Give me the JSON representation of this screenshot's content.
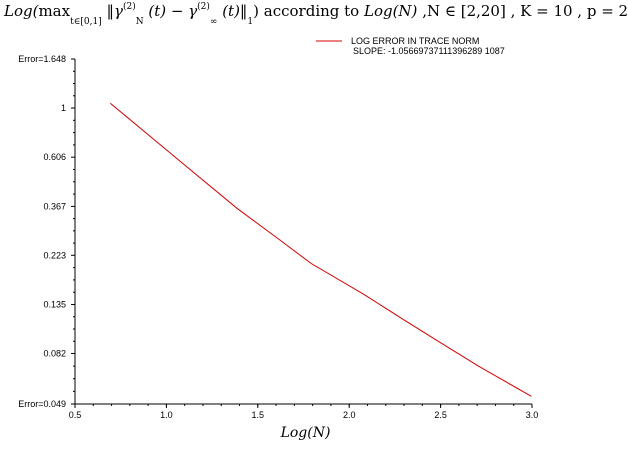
{
  "title": {
    "func": "Log(",
    "max": "max",
    "max_sub": "t∈[0,1]",
    "norm_open": "‖",
    "gamma_n": "γ",
    "gamma_n_sup": "(2)",
    "gamma_n_sub": "N",
    "minus": " (t) − ",
    "gamma_inf": "γ",
    "gamma_inf_sup": "(2)",
    "gamma_inf_sub": "∞",
    "after": " (t)",
    "norm_close": "‖",
    "norm_sub": "1",
    "rest_a": ") according to ",
    "rest_b": "Log(N)",
    "rest_c": " ,N ∈ [2,20] , K = 10 , p = 2"
  },
  "chart_data": {
    "type": "line",
    "xlabel": "Log(N)",
    "xlim": [
      0.5,
      3.0
    ],
    "x_ticks": [
      "0.5",
      "1.0",
      "1.5",
      "2.0",
      "2.5",
      "3.0"
    ],
    "y_scale": "log",
    "ylim": [
      0.049,
      1.648
    ],
    "y_ticks": [
      "Error=0.049",
      "0.082",
      "0.135",
      "0.223",
      "0.367",
      "0.606",
      "1",
      "Error=1.648"
    ],
    "y_tick_values": [
      0.049,
      0.082,
      0.135,
      0.223,
      0.367,
      0.606,
      1,
      1.648
    ],
    "legend_position": "top-right",
    "series": [
      {
        "name": "LOG ERROR IN TRACE NORM",
        "note": "SLOPE: -1.05669737111396289 1087",
        "color": "#d40000",
        "x": [
          0.693,
          1.099,
          1.386,
          1.609,
          1.792,
          2.079,
          2.303,
          2.485,
          2.708,
          2.996
        ],
        "y": [
          1.05,
          0.56,
          0.36,
          0.265,
          0.205,
          0.15,
          0.115,
          0.093,
          0.072,
          0.053
        ]
      }
    ]
  }
}
